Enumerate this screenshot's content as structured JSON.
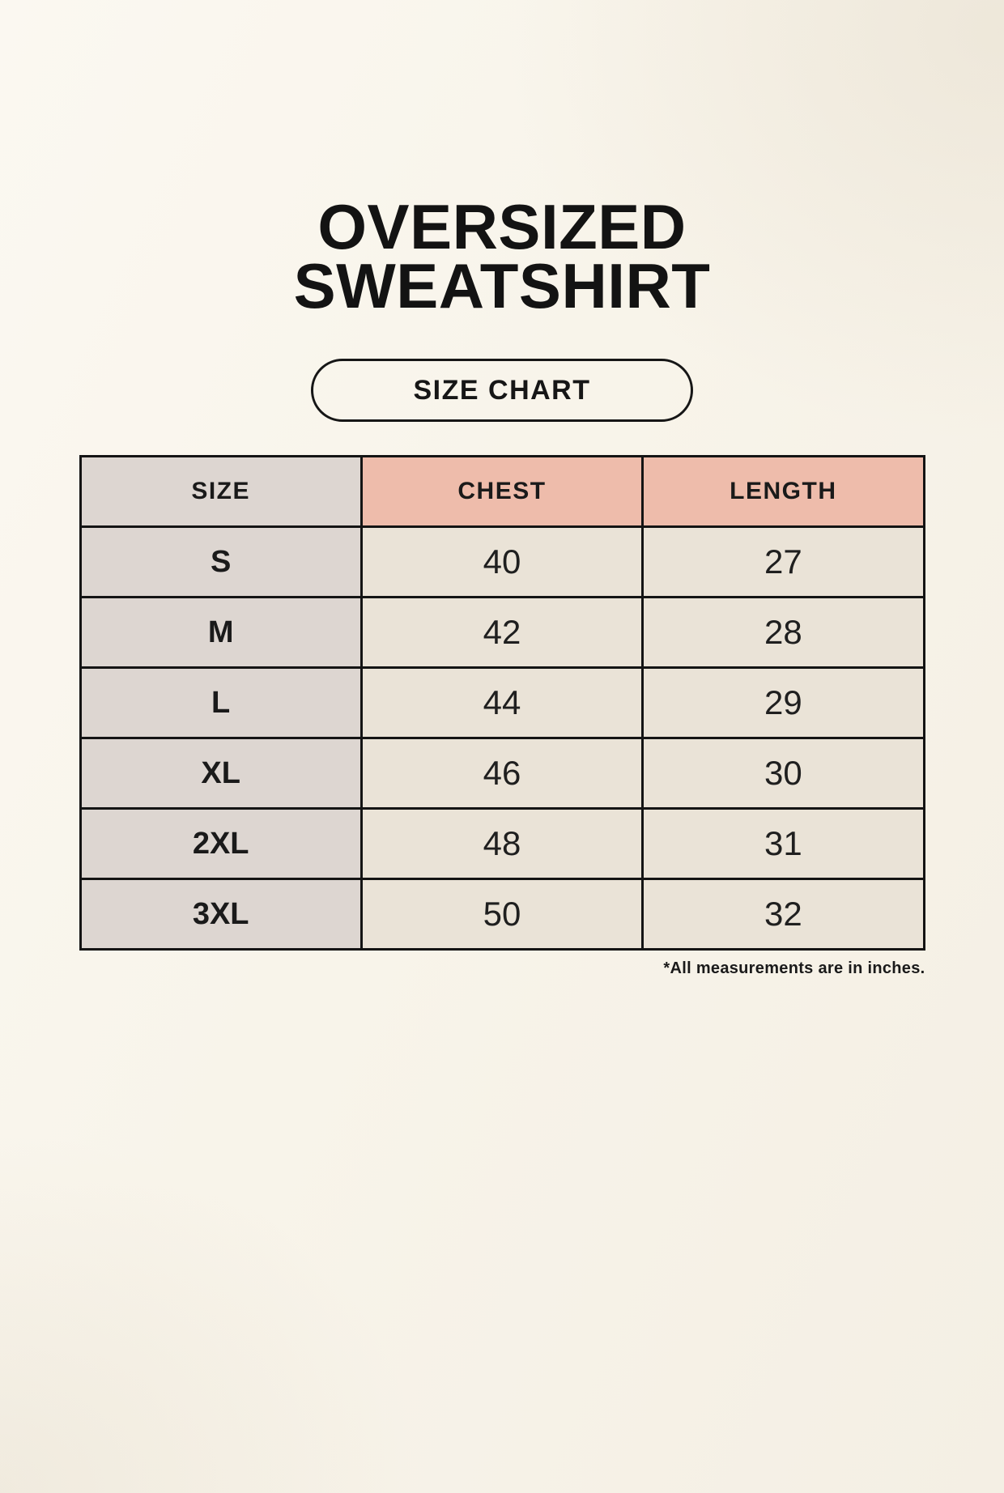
{
  "page": {
    "title_line1": "OVERSIZED",
    "title_line2": "SWEATSHIRT",
    "badge_label": "SIZE CHART",
    "footnote": "*All measurements are in inches."
  },
  "colors": {
    "background": "#f8f4ea",
    "header_pink": "#eebcab",
    "label_gray": "#ddd6d1",
    "cell_cream": "#eae3d7",
    "border_ink": "#141414"
  },
  "chart_data": {
    "type": "table",
    "title": "OVERSIZED SWEATSHIRT",
    "subtitle": "SIZE CHART",
    "units": "inches",
    "columns": [
      "SIZE",
      "CHEST",
      "LENGTH"
    ],
    "rows": [
      {
        "size": "S",
        "chest": 40,
        "length": 27
      },
      {
        "size": "M",
        "chest": 42,
        "length": 28
      },
      {
        "size": "L",
        "chest": 44,
        "length": 29
      },
      {
        "size": "XL",
        "chest": 46,
        "length": 30
      },
      {
        "size": "2XL",
        "chest": 48,
        "length": 31
      },
      {
        "size": "3XL",
        "chest": 50,
        "length": 32
      }
    ]
  }
}
